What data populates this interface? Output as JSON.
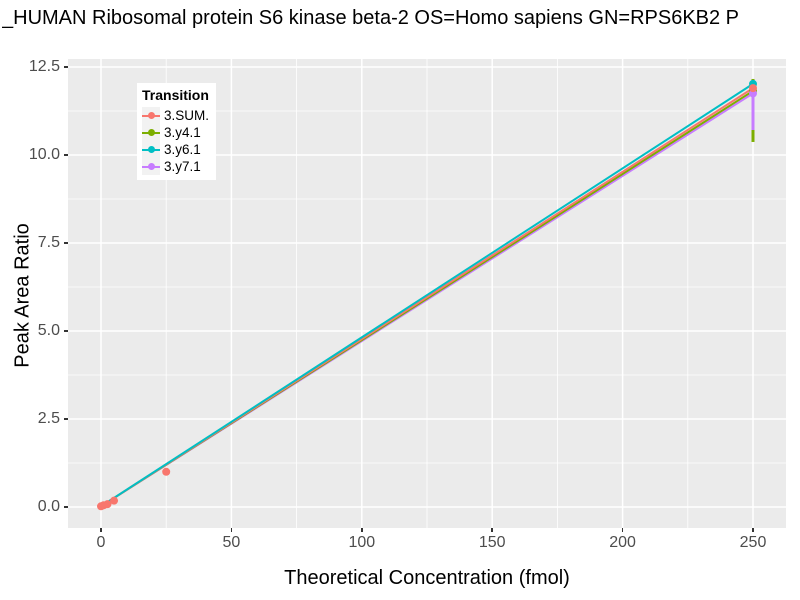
{
  "chart_data": {
    "type": "line",
    "title": "_HUMAN Ribosomal protein S6 kinase beta-2 OS=Homo sapiens GN=RPS6KB2 P",
    "xlabel": "Theoretical Concentration (fmol)",
    "ylabel": "Peak Area Ratio",
    "xlim": [
      0,
      250
    ],
    "ylim": [
      0,
      12.5
    ],
    "x_tick_values": [
      0,
      50,
      100,
      150,
      200,
      250
    ],
    "x_tick_labels": [
      "0",
      "50",
      "100",
      "150",
      "200",
      "250"
    ],
    "y_tick_values": [
      0,
      2.5,
      5,
      7.5,
      10,
      12.5
    ],
    "y_tick_labels": [
      "0.0",
      "2.5",
      "5.0",
      "7.5",
      "10.0",
      "12.5"
    ],
    "grid": "major-and-minor-white-on-grey",
    "panel_background": "#EBEBEB",
    "gridline_color": "#FFFFFF",
    "tick_label_color": "#4D4D4D",
    "legend_position": "top-left-inside",
    "legend": {
      "title": "Transition",
      "items": [
        {
          "label": "3.SUM."
        },
        {
          "label": "3.y4.1"
        },
        {
          "label": "3.y6.1"
        },
        {
          "label": "3.y7.1"
        }
      ]
    },
    "series": [
      {
        "name": "3.SUM.",
        "color": "#F8766D",
        "line": [
          [
            0,
            0.02
          ],
          [
            250,
            11.9
          ]
        ],
        "points": [
          [
            0,
            0.02
          ],
          [
            1,
            0.05
          ],
          [
            2.5,
            0.08
          ],
          [
            5,
            0.18
          ],
          [
            25,
            1.0
          ],
          [
            250,
            11.9
          ]
        ]
      },
      {
        "name": "3.y4.1",
        "color": "#7CAE00",
        "line": [
          [
            0,
            0.02
          ],
          [
            250,
            11.82
          ]
        ],
        "points": [
          [
            250,
            11.82
          ]
        ],
        "errorbar": {
          "x": 250,
          "ymin": 10.37,
          "ymax": 12.16
        }
      },
      {
        "name": "3.y6.1",
        "color": "#00BFC4",
        "line": [
          [
            0,
            0.02
          ],
          [
            250,
            12.02
          ]
        ],
        "points": [
          [
            250,
            12.02
          ]
        ]
      },
      {
        "name": "3.y7.1",
        "color": "#C77CFF",
        "line": [
          [
            0,
            0.02
          ],
          [
            250,
            11.75
          ]
        ],
        "points": [
          [
            250,
            11.75
          ]
        ],
        "errorbar": {
          "x": 250,
          "ymin": 10.71,
          "ymax": 11.9
        }
      }
    ]
  }
}
